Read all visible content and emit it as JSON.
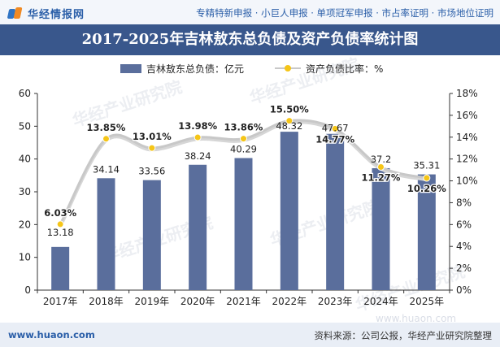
{
  "header": {
    "logo_text": "华经情报网",
    "services": "专精特新申报 · 小巨人申报 · 单项冠军申报 · 市占率证明 · 市场地位证明"
  },
  "footer": {
    "url": "www.huaon.com",
    "source": "资料来源：公司公报，华经产业研究院整理"
  },
  "watermark": {
    "text": "华经产业研究院",
    "url": "www.huaon.com"
  },
  "chart_data": {
    "type": "bar",
    "title": "2017-2025年吉林敖东总负债及资产负债率统计图",
    "categories": [
      "2017年",
      "2018年",
      "2019年",
      "2020年",
      "2021年",
      "2022年",
      "2023年",
      "2024年",
      "2025年"
    ],
    "series": [
      {
        "name": "吉林敖东总负债：亿元",
        "type": "bar",
        "axis": "left",
        "color": "#5a6e9c",
        "values": [
          13.18,
          34.14,
          33.56,
          38.24,
          40.29,
          48.32,
          47.67,
          37.2,
          35.31
        ],
        "labels": [
          "13.18",
          "34.14",
          "33.56",
          "38.24",
          "40.29",
          "48.32",
          "47.67",
          "37.2",
          "35.31"
        ]
      },
      {
        "name": "资产负债比率：%",
        "type": "line",
        "axis": "right",
        "color": "#f5c518",
        "values": [
          6.03,
          13.85,
          13.01,
          13.98,
          13.86,
          15.5,
          14.77,
          11.27,
          10.26
        ],
        "labels": [
          "6.03%",
          "13.85%",
          "13.01%",
          "13.98%",
          "13.86%",
          "15.50%",
          "14.77%",
          "11.27%",
          "10.26%"
        ]
      }
    ],
    "ylim_left": [
      0,
      60
    ],
    "yticks_left": [
      "0",
      "10",
      "20",
      "30",
      "40",
      "50",
      "60"
    ],
    "ylim_right": [
      0,
      18
    ],
    "yticks_right": [
      "0%",
      "2%",
      "4%",
      "6%",
      "8%",
      "10%",
      "12%",
      "14%",
      "16%",
      "18%"
    ],
    "legend": "top-center",
    "grid": false
  }
}
